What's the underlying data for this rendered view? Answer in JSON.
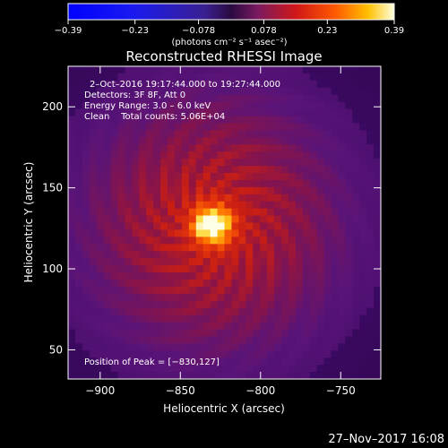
{
  "chart_data": {
    "type": "heatmap",
    "title": "Reconstructed RHESSI Image",
    "xlabel": "Heliocentric X (arcsec)",
    "ylabel": "Heliocentric Y (arcsec)",
    "xlim": [
      -920,
      -725
    ],
    "ylim": [
      32,
      225
    ],
    "x_ticks": [
      -900,
      -850,
      -800,
      -750
    ],
    "y_ticks": [
      50,
      100,
      150,
      200
    ],
    "x_tick_labels": [
      "−900",
      "−850",
      "−800",
      "−750"
    ],
    "y_tick_labels": [
      "50",
      "100",
      "150",
      "200"
    ],
    "colorbar": {
      "range": [
        -0.39,
        0.39
      ],
      "ticks": [
        -0.39,
        -0.23,
        -0.078,
        0.078,
        0.23,
        0.39
      ],
      "tick_labels": [
        "−0.39",
        "−0.23",
        "−0.078",
        "0.078",
        "0.23",
        "0.39"
      ],
      "units": "(photons cm⁻² s⁻¹ asec⁻²)"
    },
    "annotations": {
      "time": "2–Oct–2016 19:17:44.000 to 19:27:44.000",
      "detectors": "Detectors: 3F 8F, Att 0",
      "energy": "Energy Range: 3.0 – 6.0 keV",
      "clean": "Clean    Total counts: 5.06E+04",
      "peak": "Position of Peak = [−830,127]"
    },
    "peak": {
      "x": -830,
      "y": 127,
      "value": 0.39
    },
    "footer_date": "27–Nov–2017 16:08",
    "colors": {
      "background": "#000000",
      "foreground": "#ffffff"
    }
  }
}
